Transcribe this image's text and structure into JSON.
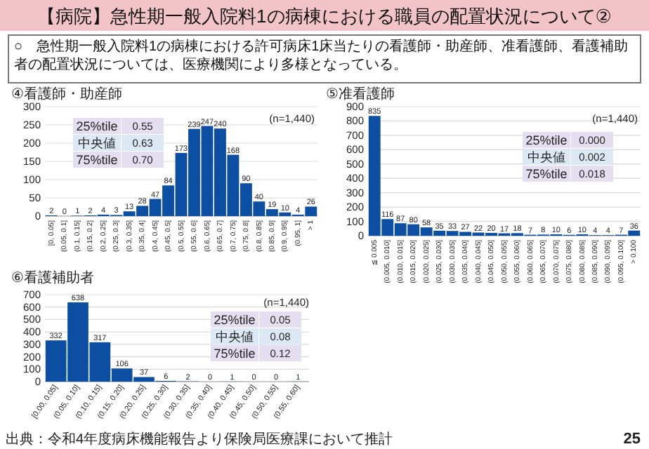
{
  "chart_data": [
    {
      "type": "other",
      "title": "【病院】急性期一般入院料1の病棟における職員の配置状況について②",
      "annotations": [
        "○　急性期一般入院料1の病棟における許可病床1床当たりの看護師・助産師、准看護師、看護補助者の配置状況については、医療機関により多様となっている。",
        "出典：令和4年度病床機能報告より保険局医療課において推計",
        "25"
      ]
    },
    {
      "type": "bar",
      "title": "④看護師・助産師",
      "categories": [
        "[0, 0.05]",
        "(0.05, 0.1]",
        "(0.1, 0.15]",
        "(0.15, 0.2]",
        "(0.2, 0.25]",
        "(0.25, 0.3]",
        "(0.3, 0.35]",
        "(0.35, 0.4]",
        "(0.4, 0.45]",
        "(0.45, 0.5]",
        "(0.5, 0.55]",
        "(0.55, 0.6]",
        "(0.6, 0.65]",
        "(0.65, 0.7]",
        "(0.7, 0.75]",
        "(0.75, 0.8]",
        "(0.8, 0.85]",
        "(0.85, 0.9]",
        "(0.9, 0.95]",
        "(0.95, 1]",
        "> 1"
      ],
      "values": [
        2,
        0,
        1,
        2,
        4,
        3,
        13,
        28,
        47,
        84,
        173,
        239,
        247,
        240,
        168,
        90,
        40,
        19,
        10,
        4,
        26
      ],
      "color": "#0b4ea2",
      "ylim": [
        0,
        300
      ],
      "yticks": [
        0,
        50,
        100,
        150,
        200,
        250,
        300
      ],
      "grid": "y",
      "data_labels": true,
      "annotations": [
        "(n=1,440)",
        "25%tile",
        "0.55",
        "中央値",
        "0.63",
        "75%tile",
        "0.70"
      ]
    },
    {
      "type": "bar",
      "title": "⑤准看護師",
      "categories": [
        "≦ 0.005",
        "(0.005, 0.010]",
        "(0.010, 0.015]",
        "(0.015, 0.020]",
        "(0.020, 0.025]",
        "(0.025, 0.030]",
        "(0.030, 0.035]",
        "(0.035, 0.040]",
        "(0.040, 0.045]",
        "(0.045, 0.050]",
        "(0.050, 0.055]",
        "(0.055, 0.060]",
        "(0.060, 0.065]",
        "(0.065, 0.070]",
        "(0.070, 0.075]",
        "(0.075, 0.080]",
        "(0.080, 0.085]",
        "(0.085, 0.090]",
        "(0.090, 0.095]",
        "(0.095, 0.100]",
        "> 0.100"
      ],
      "values": [
        835,
        116,
        87,
        80,
        58,
        35,
        33,
        27,
        22,
        20,
        17,
        18,
        7,
        8,
        10,
        6,
        10,
        4,
        4,
        7,
        36
      ],
      "color": "#0b4ea2",
      "ylim": [
        0,
        900
      ],
      "yticks": [
        0,
        100,
        200,
        300,
        400,
        500,
        600,
        700,
        800,
        900
      ],
      "grid": "y",
      "data_labels": true,
      "annotations": [
        "(n=1,440)",
        "25%tile",
        "0.000",
        "中央値",
        "0.002",
        "75%tile",
        "0.018"
      ]
    },
    {
      "type": "bar",
      "title": "⑥看護補助者",
      "categories": [
        "[0.00, 0.05]",
        "(0.05, 0.10]",
        "(0.10, 0.15]",
        "(0.15, 0.20]",
        "(0.20, 0.25]",
        "(0.25, 0.30]",
        "(0.30, 0.35]",
        "(0.35, 0.40]",
        "(0.40, 0.45]",
        "(0.45, 0.50]",
        "(0.50, 0.55]",
        "(0.55, 0.60]"
      ],
      "values": [
        332,
        638,
        317,
        106,
        37,
        6,
        2,
        0,
        1,
        0,
        0,
        1
      ],
      "color": "#0b4ea2",
      "ylim": [
        0,
        700
      ],
      "yticks": [
        0,
        100,
        200,
        300,
        400,
        500,
        600,
        700
      ],
      "grid": "y",
      "data_labels": true,
      "annotations": [
        "(n=1,440)",
        "25%tile",
        "0.05",
        "中央値",
        "0.08",
        "75%tile",
        "0.12"
      ]
    }
  ]
}
